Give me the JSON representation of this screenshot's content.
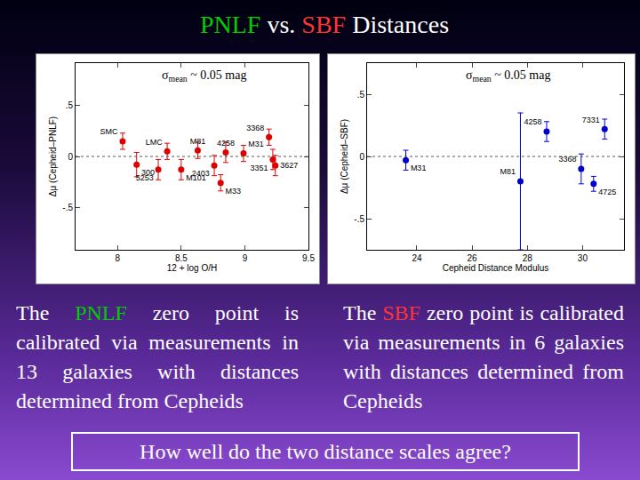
{
  "slide": {
    "title": [
      {
        "text": "PNLF",
        "color": "#00cc00"
      },
      {
        "text": " vs. "
      },
      {
        "text": "SBF",
        "color": "#ff3333"
      },
      {
        "text": " Distances"
      }
    ],
    "captions": [
      [
        {
          "text": "The "
        },
        {
          "text": "PNLF",
          "color": "#00cc00"
        },
        {
          "text": " zero point is calibrated via measurements in 13 galaxies with distances determined from Cepheids"
        }
      ],
      [
        {
          "text": "The "
        },
        {
          "text": "SBF",
          "color": "#ff3333"
        },
        {
          "text": " zero point is calibrated via measurements in 6 galaxies with distances determined from Cepheids"
        }
      ]
    ],
    "question": "How well do the two distance scales agree?"
  },
  "chart_data": [
    {
      "type": "scatter",
      "note": {
        "symbol": "σ",
        "sub": "mean",
        "text": " ~ 0.05 mag"
      },
      "x_label": "12 + log O/H",
      "y_label": "Δμ (Cepheid–PNLF)",
      "labels": [
        "SMC",
        "300",
        "5253",
        "LMC",
        "M101",
        "M81",
        "2403",
        "4258",
        "M33",
        "M31",
        "3368",
        "3351",
        "3627"
      ],
      "x": [
        8.04,
        8.15,
        8.32,
        8.39,
        8.5,
        8.63,
        8.76,
        8.85,
        8.81,
        8.99,
        9.19,
        9.22,
        9.24
      ],
      "values": [
        0.15,
        -0.08,
        -0.13,
        0.05,
        -0.13,
        0.06,
        -0.09,
        0.04,
        -0.26,
        0.03,
        0.19,
        -0.03,
        -0.09
      ],
      "errors": [
        0.08,
        0.12,
        0.1,
        0.08,
        0.1,
        0.08,
        0.1,
        0.1,
        0.08,
        0.08,
        0.08,
        0.1,
        0.1
      ],
      "color": "#dd0000",
      "marker": "circle",
      "xlim": [
        7.67,
        9.5
      ],
      "xticks": [
        8,
        8.5,
        9,
        9.5
      ],
      "ylim": [
        -0.92,
        0.92
      ],
      "yticks": [
        {
          "value": -0.5,
          "label": "-.5"
        },
        0,
        {
          "value": 0.5,
          "label": ".5"
        }
      ],
      "hline": 0,
      "grid": false
    },
    {
      "type": "scatter",
      "note": {
        "symbol": "σ",
        "sub": "mean",
        "text": " ~ 0.05 mag"
      },
      "x_label": "Cepheid Distance Modulus",
      "y_label": "Δμ (Cepheid–SBF)",
      "labels": [
        "M31",
        "M81",
        "4258",
        "7331",
        "3368",
        "4725"
      ],
      "x": [
        23.6,
        27.75,
        28.7,
        30.8,
        29.95,
        30.4
      ],
      "values": [
        -0.03,
        -0.2,
        0.2,
        0.22,
        -0.1,
        -0.22
      ],
      "errors": [
        0.08,
        0.55,
        0.08,
        0.08,
        0.12,
        0.06
      ],
      "color": "#0000cc",
      "marker": "circle",
      "xlim": [
        22.2,
        31.5
      ],
      "xticks": [
        24,
        26,
        28,
        30
      ],
      "ylim": [
        -0.75,
        0.75
      ],
      "yticks": [
        {
          "value": -0.5,
          "label": "-.5"
        },
        0,
        {
          "value": 0.5,
          "label": ".5"
        }
      ],
      "hline": 0,
      "grid": false
    }
  ]
}
